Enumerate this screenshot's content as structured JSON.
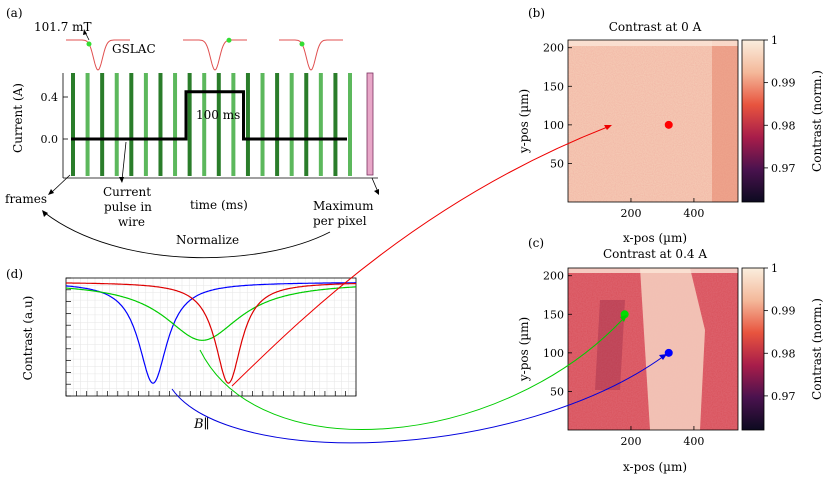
{
  "chart_data": [
    {
      "panel": "(a)",
      "type": "line",
      "ylabel": "Current (A)",
      "xlabel": "time (ms)",
      "yticks": [
        "0.0",
        "0.4"
      ],
      "field_label": "101.7 mT",
      "gslac_label": "GSLAC",
      "pulse_label": "100 ms",
      "annotations": {
        "frames": "frames",
        "pulse_line1": "Current",
        "pulse_line2": "pulse in",
        "pulse_line3": "wire",
        "max_line1": "Maximum",
        "max_line2": "per pixel",
        "normalize": "Normalize"
      },
      "current_trace": {
        "x_ms": [
          0,
          200,
          200,
          300,
          300,
          480
        ],
        "y_A": [
          0.0,
          0.0,
          0.45,
          0.45,
          0.0,
          0.0
        ]
      },
      "ylim": [
        -0.2,
        0.65
      ],
      "frame_count": 20,
      "colors": {
        "frames": "#2e8b2e",
        "trace": "#000000",
        "max_bar": "#e8a7c8"
      }
    },
    {
      "panel": "(b)",
      "type": "heatmap",
      "title": "Contrast at 0 A",
      "xlabel": "x-pos (µm)",
      "ylabel": "y-pos (µm)",
      "xticks": [
        200,
        400
      ],
      "yticks": [
        50,
        100,
        150,
        200
      ],
      "xlim": [
        0,
        540
      ],
      "ylim": [
        0,
        210
      ],
      "colorbar": {
        "label": "Contrast (norm.)",
        "ticks": [
          "1",
          "0.99",
          "0.98",
          "0.97"
        ],
        "range": [
          0.962,
          1.0
        ]
      },
      "marker": {
        "x": 320,
        "y": 100,
        "color": "#ff0000"
      }
    },
    {
      "panel": "(c)",
      "type": "heatmap",
      "title": "Contrast at 0.4 A",
      "xlabel": "x-pos (µm)",
      "ylabel": "y-pos (µm)",
      "xticks": [
        200,
        400
      ],
      "yticks": [
        50,
        100,
        150,
        200
      ],
      "xlim": [
        0,
        540
      ],
      "ylim": [
        0,
        210
      ],
      "colorbar": {
        "label": "Contrast (norm.)",
        "ticks": [
          "1",
          "0.99",
          "0.98",
          "0.97"
        ],
        "range": [
          0.962,
          1.0
        ]
      },
      "markers": [
        {
          "x": 320,
          "y": 100,
          "color": "#0000ff"
        },
        {
          "x": 180,
          "y": 150,
          "color": "#00dd00"
        }
      ]
    },
    {
      "panel": "(d)",
      "type": "line",
      "ylabel": "Contrast (a.u)",
      "xlabel": "B∥",
      "grid": true,
      "series": [
        {
          "color": "#0000ff",
          "dip_center": 0.3,
          "dip_width": 0.06,
          "dip_depth": 0.92
        },
        {
          "color": "#00cc00",
          "dip_center": 0.47,
          "dip_width": 0.16,
          "dip_depth": 0.53
        },
        {
          "color": "#dd0000",
          "dip_center": 0.56,
          "dip_width": 0.055,
          "dip_depth": 0.92
        }
      ]
    }
  ]
}
